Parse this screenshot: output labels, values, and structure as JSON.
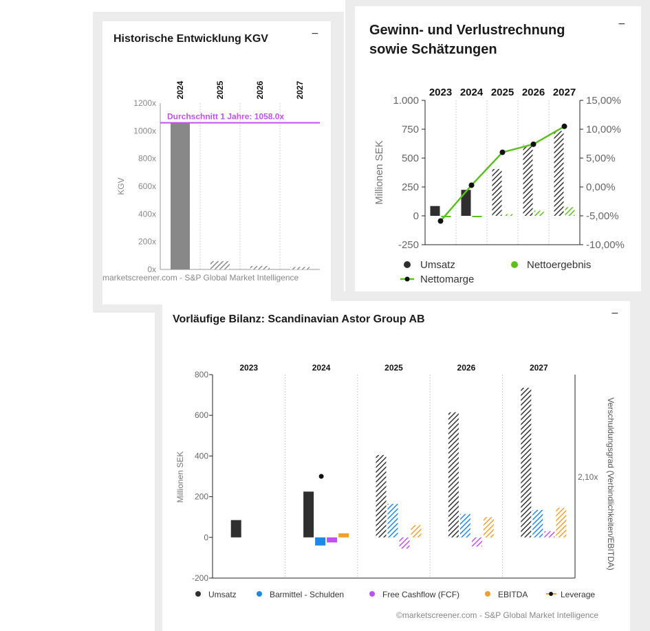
{
  "colors": {
    "umsatz": "#2f2f2f",
    "nettoergebnis": "#5cbf1f",
    "nettomarge_line": "#5cbf1f",
    "barmittel": "#1e88e5",
    "fcf": "#c050f0",
    "ebitda": "#f0a030",
    "kgv_bar": "#888888",
    "average_line": "#c050f0"
  },
  "kgv_card": {
    "title": "Historische Entwicklung KGV",
    "minimize_icon": "−",
    "footer": "marketscreener.com - S&P Global Market Intelligence"
  },
  "guv_card": {
    "title_line1": "Gewinn- und Verlustrechnung",
    "title_line2": "sowie Schätzungen",
    "minimize_icon": "−"
  },
  "bilanz_card": {
    "title": "Vorläufige Bilanz: Scandinavian Astor Group AB",
    "minimize_icon": "−",
    "footer": "©marketscreener.com - S&P Global Market Intelligence"
  },
  "chart_data": [
    {
      "id": "kgv",
      "type": "bar",
      "title": "Historische Entwicklung KGV",
      "categories": [
        "2024",
        "2025",
        "2026",
        "2027"
      ],
      "values": [
        1058,
        60,
        25,
        18
      ],
      "estimated": [
        false,
        true,
        true,
        true
      ],
      "ylabel": "KGV",
      "ylim": [
        0,
        1200
      ],
      "yticks": [
        0,
        200,
        400,
        600,
        800,
        1000,
        1200
      ],
      "ytick_labels": [
        "0x",
        "200x",
        "400x",
        "600x",
        "800x",
        "1000x",
        "1200x"
      ],
      "average_value": 1058,
      "average_label": "Durchschnitt 1 Jahre: 1058.0x"
    },
    {
      "id": "guv",
      "type": "bar",
      "title": "Gewinn- und Verlustrechnung sowie Schätzungen",
      "categories": [
        "2023",
        "2024",
        "2025",
        "2026",
        "2027"
      ],
      "estimated": [
        false,
        false,
        true,
        true,
        true
      ],
      "ylabel": "Millionen SEK",
      "ylim": [
        -250,
        1000
      ],
      "yticks": [
        -250,
        0,
        250,
        500,
        750,
        1000
      ],
      "ytick_labels": [
        "-250",
        "0",
        "250",
        "500",
        "750",
        "1.000"
      ],
      "y2lim": [
        -10,
        15
      ],
      "y2ticks": [
        -10,
        -5,
        0,
        5,
        10,
        15
      ],
      "y2tick_labels": [
        "-10,00%",
        "-5,00%",
        "0,00%",
        "5,00%",
        "10,00%",
        "15,00%"
      ],
      "series": [
        {
          "name": "Umsatz",
          "kind": "bar",
          "values": [
            85,
            225,
            405,
            615,
            735
          ]
        },
        {
          "name": "Nettoergebnis",
          "kind": "bar",
          "values": [
            -5,
            -5,
            15,
            45,
            75
          ]
        },
        {
          "name": "Nettomarge",
          "kind": "line",
          "axis": "y2",
          "values": [
            -5.9,
            0.3,
            6.0,
            7.4,
            10.5
          ]
        }
      ]
    },
    {
      "id": "bilanz",
      "type": "bar",
      "title": "Vorläufige Bilanz: Scandinavian Astor Group AB",
      "categories": [
        "2023",
        "2024",
        "2025",
        "2026",
        "2027"
      ],
      "estimated": [
        false,
        false,
        true,
        true,
        true
      ],
      "ylabel": "Millionen SEK",
      "ylim": [
        -200,
        800
      ],
      "yticks": [
        -200,
        0,
        200,
        400,
        600,
        800
      ],
      "ytick_labels": [
        "-200",
        "0",
        "200",
        "400",
        "600",
        "800"
      ],
      "y2label": "Verschuldungsgrad (Verbindlichkeiten/EBITDA)",
      "y2tick_label": "2,10x",
      "y2tick_value": 2.1,
      "series": [
        {
          "name": "Umsatz",
          "kind": "bar",
          "values": [
            85,
            225,
            405,
            615,
            735
          ]
        },
        {
          "name": "Barmittel - Schulden",
          "kind": "bar",
          "values": [
            null,
            -40,
            165,
            115,
            135
          ]
        },
        {
          "name": "Free Cashflow (FCF)",
          "kind": "bar",
          "values": [
            null,
            -25,
            -55,
            -45,
            30
          ]
        },
        {
          "name": "EBITDA",
          "kind": "bar",
          "values": [
            null,
            20,
            60,
            100,
            145
          ]
        },
        {
          "name": "Leverage",
          "kind": "line",
          "axis": "y2",
          "values": [
            null,
            2.1,
            null,
            null,
            null
          ]
        }
      ]
    }
  ]
}
